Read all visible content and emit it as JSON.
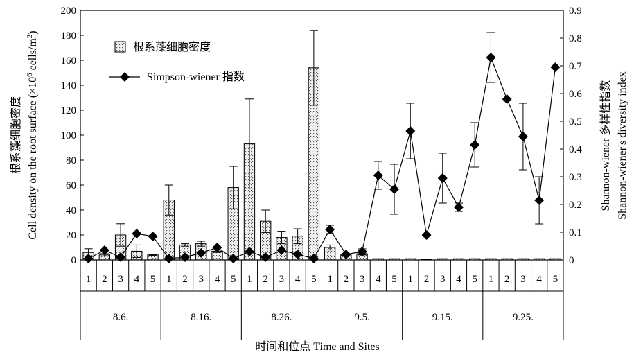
{
  "chart_data": {
    "type": "bar",
    "xlabel": "时间和位点 Time and Sites",
    "ylabel_left": [
      "根系藻细胞密度",
      "Cell density on the root surface (×10",
      "6",
      " cells/m",
      "2",
      ")"
    ],
    "ylabel_right": [
      "Shannon-wiener 多样性指数",
      "Shannon-wiener's diversity index"
    ],
    "ylim_left": [
      0,
      200
    ],
    "ylim_right": [
      0,
      0.9
    ],
    "yticks_left": [
      0,
      20,
      40,
      60,
      80,
      100,
      120,
      140,
      160,
      180,
      200
    ],
    "yticks_right": [
      "0",
      "0.1",
      "0.2",
      "0.3",
      "0.4",
      "0.5",
      "0.6",
      "0.7",
      "0.8",
      "0.9"
    ],
    "groups": [
      "8.6.",
      "8.16.",
      "8.26.",
      "9.5.",
      "9.15.",
      "9.25."
    ],
    "sites": [
      "1",
      "2",
      "3",
      "4",
      "5"
    ],
    "legend_position": "top-left",
    "series": [
      {
        "name": "根系藻细胞密度",
        "kind": "bar",
        "axis": "left",
        "values": [
          6,
          4,
          20,
          7,
          4,
          48,
          12,
          13,
          7,
          58,
          93,
          31,
          18,
          19,
          154,
          10,
          4,
          5,
          1,
          1,
          1,
          0.5,
          1,
          1,
          1,
          1,
          1,
          1,
          1,
          1
        ],
        "errors": [
          3,
          1,
          9,
          5,
          0.5,
          12,
          1,
          2,
          1,
          17,
          36,
          9,
          5,
          6,
          30,
          2,
          1,
          1,
          0,
          0,
          0,
          0,
          0,
          0,
          0,
          0,
          0,
          0,
          0,
          0
        ]
      },
      {
        "name": "Simpson-wiener 指数",
        "kind": "line",
        "axis": "right",
        "values": [
          0.005,
          0.035,
          0.01,
          0.095,
          0.085,
          0.005,
          0.01,
          0.025,
          0.045,
          0.005,
          0.03,
          0.01,
          0.035,
          0.02,
          0.005,
          0.11,
          0.02,
          0.03,
          0.305,
          0.255,
          0.465,
          0.09,
          0.295,
          0.19,
          0.415,
          0.73,
          0.58,
          0.445,
          0.215,
          0.695
        ],
        "errors": [
          0,
          0,
          0,
          0,
          0,
          0,
          0,
          0,
          0,
          0,
          0,
          0,
          0,
          0,
          0,
          0.015,
          0,
          0.01,
          0.05,
          0.09,
          0.1,
          0,
          0.09,
          0.015,
          0.08,
          0.09,
          0,
          0.12,
          0.085,
          0
        ]
      }
    ]
  }
}
